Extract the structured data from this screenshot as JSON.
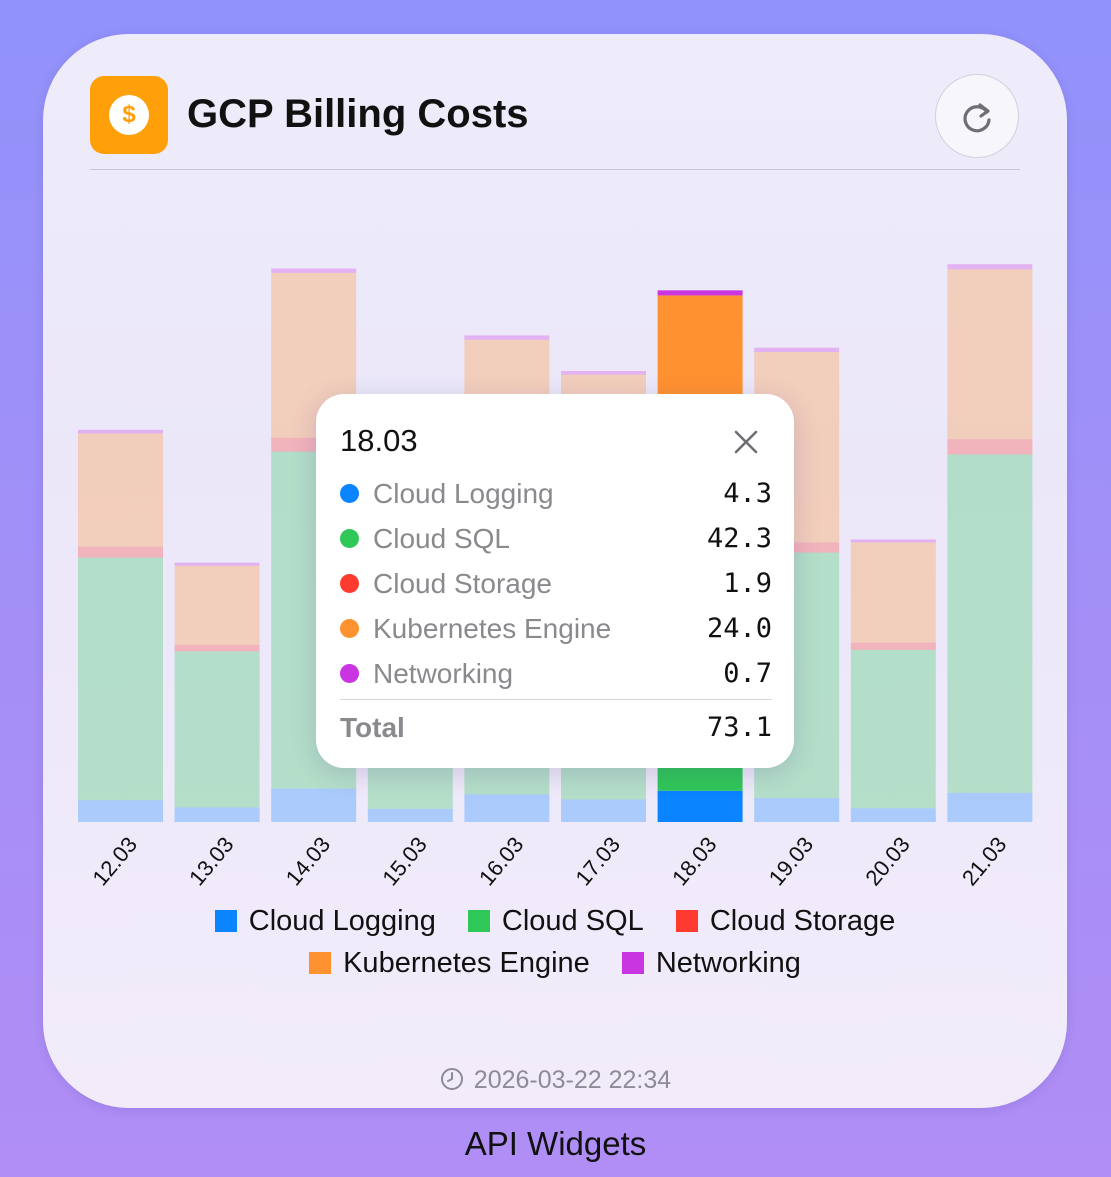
{
  "widget": {
    "title": "GCP Billing Costs",
    "app_icon": "dollar-coin-icon",
    "app_icon_glyph": "$",
    "refresh_icon": "refresh-icon",
    "updated_icon": "clock-icon",
    "updated_at": "2026-03-22 22:34"
  },
  "caption": "API Widgets",
  "legend": [
    {
      "label": "Cloud Logging",
      "color": "#0a84ff"
    },
    {
      "label": "Cloud SQL",
      "color": "#30c759"
    },
    {
      "label": "Cloud Storage",
      "color": "#ff3b30"
    },
    {
      "label": "Kubernetes Engine",
      "color": "#ff9230"
    },
    {
      "label": "Networking",
      "color": "#c935e0"
    }
  ],
  "tooltip": {
    "date": "18.03",
    "close_icon": "close-icon",
    "rows": [
      {
        "name": "Cloud Logging",
        "value": "4.3",
        "color": "#0a84ff"
      },
      {
        "name": "Cloud SQL",
        "value": "42.3",
        "color": "#30c759"
      },
      {
        "name": "Cloud Storage",
        "value": "1.9",
        "color": "#ff3b30"
      },
      {
        "name": "Kubernetes Engine",
        "value": "24.0",
        "color": "#ff9230"
      },
      {
        "name": "Networking",
        "value": "0.7",
        "color": "#c935e0"
      }
    ],
    "total_label": "Total",
    "total_value": "73.1"
  },
  "chart_data": {
    "type": "bar",
    "stacked": true,
    "highlighted_category": "18.03",
    "categories": [
      "12.03",
      "13.03",
      "14.03",
      "15.03",
      "16.03",
      "17.03",
      "18.03",
      "19.03",
      "20.03",
      "21.03"
    ],
    "series": [
      {
        "name": "Cloud Logging",
        "color": "#0a84ff",
        "values": [
          3.0,
          2.0,
          4.6,
          1.8,
          3.8,
          3.1,
          4.3,
          3.3,
          1.9,
          4.0
        ]
      },
      {
        "name": "Cloud SQL",
        "color": "#30c759",
        "values": [
          33.4,
          21.5,
          46.4,
          36.0,
          41.0,
          38.0,
          42.3,
          33.8,
          21.8,
          46.6
        ]
      },
      {
        "name": "Cloud Storage",
        "color": "#ff3b30",
        "values": [
          1.5,
          0.9,
          1.9,
          1.4,
          1.6,
          1.5,
          1.9,
          1.4,
          1.0,
          2.1
        ]
      },
      {
        "name": "Kubernetes Engine",
        "color": "#ff9230",
        "values": [
          15.6,
          10.9,
          22.7,
          19.0,
          20.0,
          19.0,
          24.0,
          26.2,
          13.8,
          23.4
        ]
      },
      {
        "name": "Networking",
        "color": "#c935e0",
        "values": [
          0.5,
          0.4,
          0.6,
          0.5,
          0.6,
          0.5,
          0.7,
          0.6,
          0.4,
          0.7
        ]
      }
    ],
    "ylim": [
      0,
      76
    ],
    "grid": false,
    "legend_position": "bottom"
  }
}
